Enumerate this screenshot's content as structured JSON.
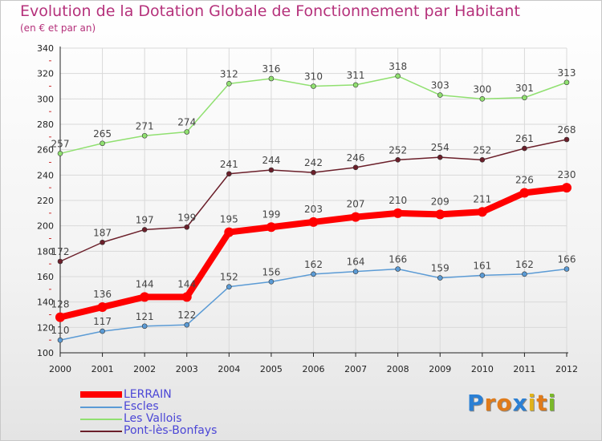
{
  "title": "Evolution de la Dotation Globale de Fonctionnement par Habitant",
  "subtitle": "(en € et par an)",
  "logo": {
    "letters": [
      "P",
      "r",
      "o",
      "x",
      "i",
      "t",
      "i"
    ],
    "colors": [
      "#2a7fd4",
      "#e07b1a",
      "#e07b1a",
      "#2a7fd4",
      "#e0b21a",
      "#e07b1a",
      "#7ab82a"
    ]
  },
  "colors": {
    "title": "#b5317b",
    "legend_text": "#4b46d6",
    "grid": "#d9d9d9",
    "axis": "#222222"
  },
  "chart_data": {
    "type": "line",
    "title": "Evolution de la Dotation Globale de Fonctionnement par Habitant",
    "subtitle": "(en € et par an)",
    "xlabel": "",
    "ylabel": "",
    "x": [
      "2000",
      "2001",
      "2002",
      "2003",
      "2004",
      "2005",
      "2006",
      "2007",
      "2008",
      "2009",
      "2010",
      "2011",
      "2012"
    ],
    "ylim": [
      100,
      340
    ],
    "yticks": [
      "100",
      "120",
      "140",
      "160",
      "180",
      "200",
      "220",
      "240",
      "260",
      "280",
      "300",
      "320",
      "340"
    ],
    "grid": true,
    "legend_position": "bottom-left",
    "series": [
      {
        "name": "LERRAIN",
        "color": "#ff0000",
        "values": [
          128,
          136,
          144,
          144,
          195,
          199,
          203,
          207,
          210,
          209,
          211,
          226,
          230
        ]
      },
      {
        "name": "Escles",
        "color": "#5b9bd5",
        "values": [
          110,
          117,
          121,
          122,
          152,
          156,
          162,
          164,
          166,
          159,
          161,
          162,
          166
        ]
      },
      {
        "name": "Les Vallois",
        "color": "#90e070",
        "values": [
          257,
          265,
          271,
          274,
          312,
          316,
          310,
          311,
          318,
          303,
          300,
          301,
          313
        ]
      },
      {
        "name": "Pont-lès-Bonfays",
        "color": "#6b1f2a",
        "values": [
          172,
          187,
          197,
          199,
          241,
          244,
          242,
          246,
          252,
          254,
          252,
          261,
          268
        ]
      }
    ]
  }
}
